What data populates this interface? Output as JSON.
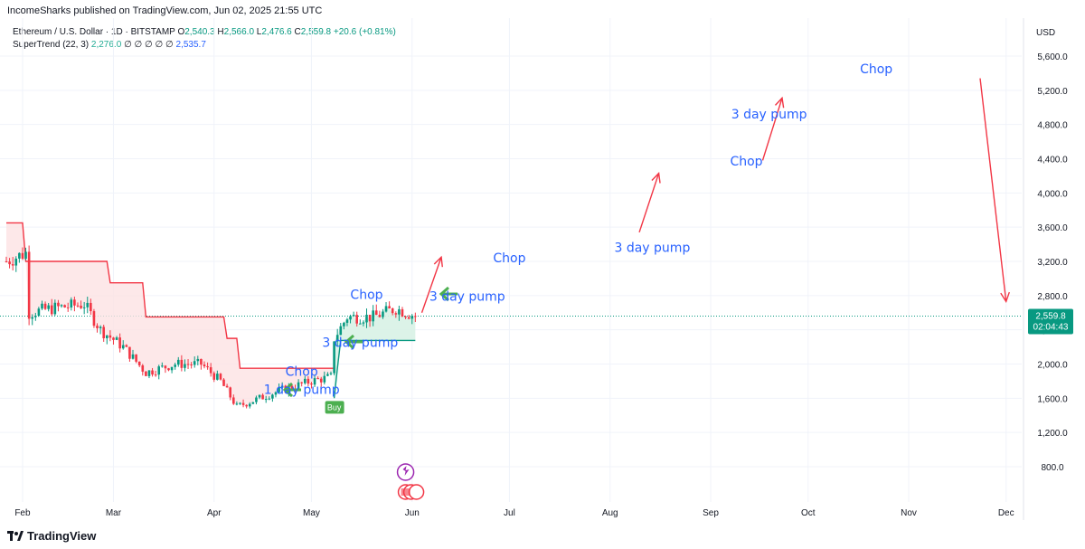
{
  "header": {
    "text": "IncomeSharks published on TradingView.com, Jun 02, 2025 21:55 UTC"
  },
  "legend": {
    "symbol": "Ethereum / U.S. Dollar · 1D · BITSTAMP",
    "open_label": "O",
    "open": "2,540.3",
    "high_label": "H",
    "high": "2,566.0",
    "low_label": "L",
    "low": "2,476.6",
    "close_label": "C",
    "close": "2,559.8",
    "change": "+20.6 (+0.81%)",
    "indicator": "SuperTrend (22, 3)",
    "indicator_value": "2,276.0",
    "indicator_placeholders": "∅ ∅ ∅ ∅ ∅",
    "indicator_value2": "2,535.7"
  },
  "currency": "USD",
  "price_tag": {
    "value": "2,559.8",
    "countdown": "02:04:43"
  },
  "footer": {
    "brand": "TradingView"
  },
  "colors": {
    "up": "#089981",
    "down": "#f23645",
    "supertrend": "#f23645",
    "supertrend_fill": "#fde2e4",
    "support_fill": "#d8f2e6",
    "annotation": "#2962ff",
    "arrow_red": "#f23645",
    "arrow_green": "#4caf50",
    "buy": "#4caf50"
  },
  "chart_data": {
    "type": "candlestick",
    "title": "Ethereum / U.S. Dollar · 1D · BITSTAMP",
    "ylim": [
      400,
      5800
    ],
    "y_ticks": [
      800,
      1200,
      1600,
      2000,
      2400,
      2800,
      3200,
      3600,
      4000,
      4400,
      4800,
      5200,
      5600
    ],
    "y_tick_labels": [
      "800.0",
      "1,200.0",
      "1,600.0",
      "2,000.0",
      "2,400.0",
      "2,800.0",
      "3,200.0",
      "3,600.0",
      "4,000.0",
      "4,400.0",
      "4,800.0",
      "5,200.0",
      "5,600.0"
    ],
    "x_labels": [
      "Feb",
      "Mar",
      "Apr",
      "May",
      "Jun",
      "Jul",
      "Aug",
      "Sep",
      "Oct",
      "Nov",
      "Dec"
    ],
    "last_price": 2559.8,
    "price_trend": [
      [
        "2025-01-27",
        3200
      ],
      [
        "2025-02-02",
        3300
      ],
      [
        "2025-02-03",
        2600
      ],
      [
        "2025-02-10",
        2650
      ],
      [
        "2025-02-20",
        2700
      ],
      [
        "2025-02-25",
        2400
      ],
      [
        "2025-03-04",
        2200
      ],
      [
        "2025-03-11",
        1900
      ],
      [
        "2025-03-20",
        2000
      ],
      [
        "2025-03-28",
        2000
      ],
      [
        "2025-04-03",
        1800
      ],
      [
        "2025-04-08",
        1500
      ],
      [
        "2025-04-15",
        1600
      ],
      [
        "2025-04-22",
        1700
      ],
      [
        "2025-05-01",
        1800
      ],
      [
        "2025-05-07",
        1850
      ],
      [
        "2025-05-08",
        2300
      ],
      [
        "2025-05-12",
        2550
      ],
      [
        "2025-05-20",
        2550
      ],
      [
        "2025-05-27",
        2650
      ],
      [
        "2025-06-02",
        2560
      ]
    ],
    "supertrend": [
      [
        "2025-01-27",
        3650
      ],
      [
        "2025-02-01",
        3650
      ],
      [
        "2025-02-02",
        3200
      ],
      [
        "2025-02-25",
        3200
      ],
      [
        "2025-02-28",
        2950
      ],
      [
        "2025-03-10",
        2950
      ],
      [
        "2025-03-11",
        2550
      ],
      [
        "2025-03-28",
        2550
      ],
      [
        "2025-04-05",
        2300
      ],
      [
        "2025-04-09",
        1950
      ],
      [
        "2025-05-08",
        1950
      ]
    ],
    "annotations": [
      {
        "text": "Chop",
        "date": "2025-04-28",
        "price": 1860
      },
      {
        "text": "1 day pump",
        "date": "2025-04-28",
        "price": 1650
      },
      {
        "text": "3 day pump",
        "date": "2025-05-16",
        "price": 2200
      },
      {
        "text": "Chop",
        "date": "2025-05-18",
        "price": 2760
      },
      {
        "text": "3 day pump",
        "date": "2025-06-18",
        "price": 2740
      },
      {
        "text": "Chop",
        "date": "2025-07-01",
        "price": 3190
      },
      {
        "text": "3 day pump",
        "date": "2025-08-14",
        "price": 3310
      },
      {
        "text": "Chop",
        "date": "2025-09-12",
        "price": 4320
      },
      {
        "text": "3 day pump",
        "date": "2025-09-19",
        "price": 4870
      },
      {
        "text": "Chop",
        "date": "2025-10-22",
        "price": 5400
      }
    ],
    "projection_arrows": [
      {
        "from": [
          "2025-06-04",
          2600
        ],
        "to": [
          "2025-06-10",
          3250
        ]
      },
      {
        "from": [
          "2025-08-10",
          3540
        ],
        "to": [
          "2025-08-16",
          4230
        ]
      },
      {
        "from": [
          "2025-09-17",
          4380
        ],
        "to": [
          "2025-09-23",
          5110
        ]
      },
      {
        "from": [
          "2025-11-23",
          5340
        ],
        "to": [
          "2025-12-01",
          2730
        ]
      }
    ],
    "buy_signal": {
      "date": "2025-05-08",
      "price": 1600,
      "label": "Buy"
    }
  }
}
